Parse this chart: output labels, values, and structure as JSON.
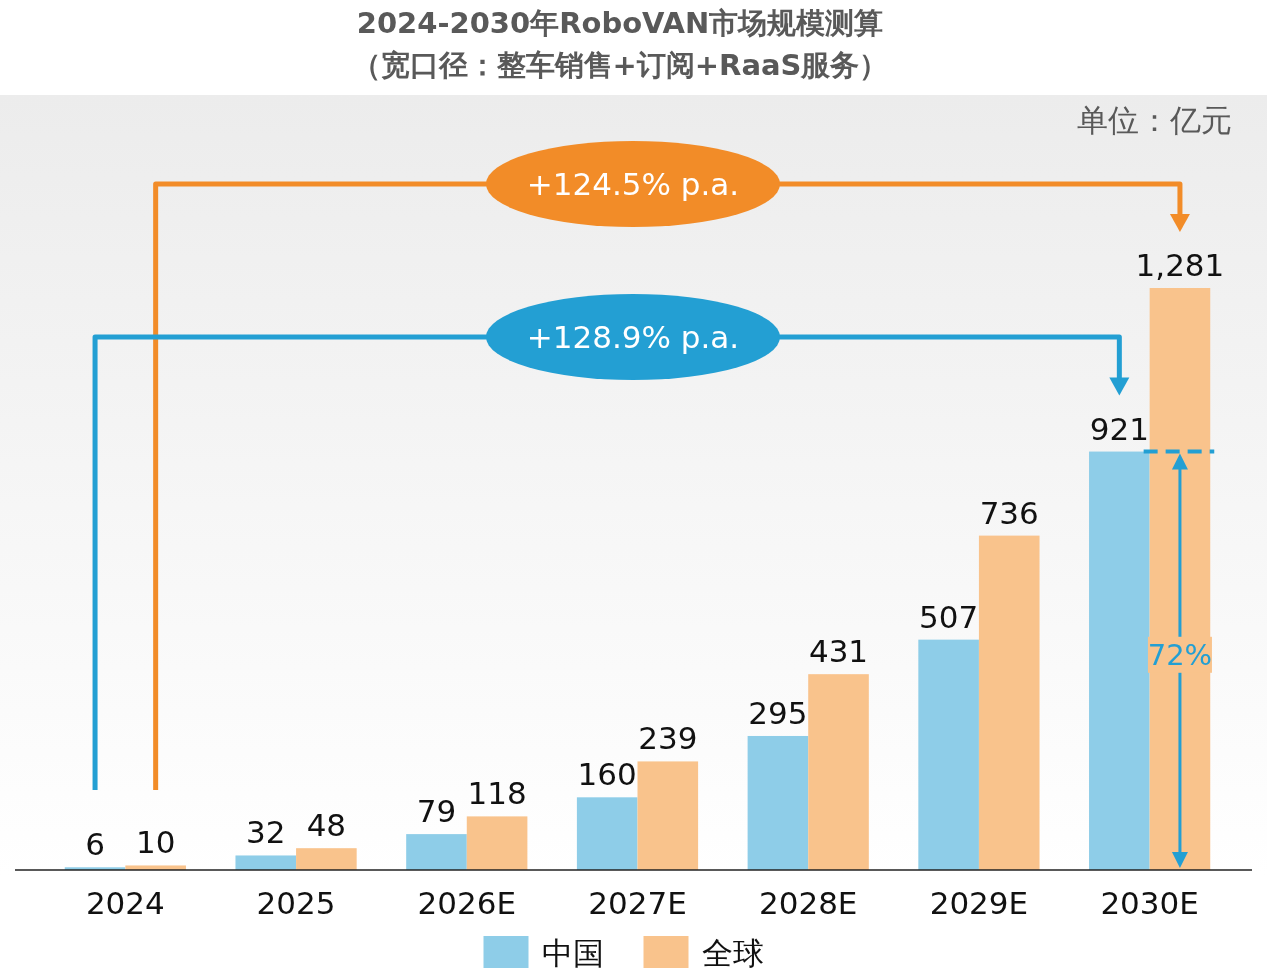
{
  "chart_data": {
    "type": "bar",
    "title": "2024-2030年RoboVAN市场规模测算",
    "subtitle": "（宽口径：整车销售+订阅+RaaS服务）",
    "categories": [
      "2024",
      "2025",
      "2026E",
      "2027E",
      "2028E",
      "2029E",
      "2030E"
    ],
    "series": [
      {
        "name": "中国",
        "color": "#8ecde8",
        "values": [
          6,
          32,
          79,
          160,
          295,
          507,
          921
        ],
        "value_labels": [
          "6",
          "32",
          "79",
          "160",
          "295",
          "507",
          "921"
        ]
      },
      {
        "name": "全球",
        "color": "#f9c38c",
        "values": [
          10,
          48,
          118,
          239,
          431,
          736,
          1281
        ],
        "value_labels": [
          "10",
          "48",
          "118",
          "239",
          "431",
          "736",
          "1,281"
        ]
      }
    ],
    "legend": "bottom",
    "annotations": [
      "单位：亿元",
      "+124.5% p.a.",
      "+128.9% p.a.",
      "72%"
    ]
  }
}
